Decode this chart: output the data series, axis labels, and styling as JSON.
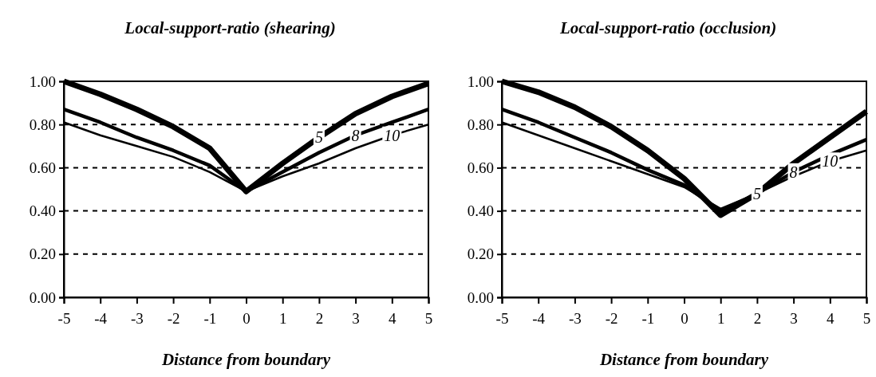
{
  "chart_data": [
    {
      "type": "line",
      "title": "Local-support-ratio (shearing)",
      "xlabel": "Distance from boundary",
      "x": [
        -5,
        -4,
        -3,
        -2,
        -1,
        0,
        1,
        2,
        3,
        4,
        5
      ],
      "xlim": [
        -5,
        5
      ],
      "xticks": [
        -5,
        -4,
        -3,
        -2,
        -1,
        0,
        1,
        2,
        3,
        4,
        5
      ],
      "ylim": [
        0,
        1
      ],
      "yticks": [
        {
          "value": 0,
          "label": "0.00"
        },
        {
          "value": 0.2,
          "label": "0.20"
        },
        {
          "value": 0.4,
          "label": "0.40"
        },
        {
          "value": 0.6,
          "label": "0.60"
        },
        {
          "value": 0.8,
          "label": "0.80"
        },
        {
          "value": 1,
          "label": "1.00"
        }
      ],
      "grid": "y",
      "marker": "none",
      "series": [
        {
          "name": "5",
          "color": "#000000",
          "values": [
            1.0,
            0.94,
            0.87,
            0.79,
            0.69,
            0.49,
            0.62,
            0.74,
            0.85,
            0.93,
            0.99
          ]
        },
        {
          "name": "8",
          "color": "#000000",
          "values": [
            0.87,
            0.81,
            0.74,
            0.68,
            0.61,
            0.49,
            0.58,
            0.67,
            0.75,
            0.81,
            0.87
          ]
        },
        {
          "name": "10",
          "color": "#000000",
          "values": [
            0.81,
            0.75,
            0.7,
            0.65,
            0.58,
            0.49,
            0.56,
            0.62,
            0.69,
            0.75,
            0.8
          ]
        }
      ]
    },
    {
      "type": "line",
      "title": "Local-support-ratio (occlusion)",
      "xlabel": "Distance from boundary",
      "x": [
        -5,
        -4,
        -3,
        -2,
        -1,
        0,
        1,
        2,
        3,
        4,
        5
      ],
      "xlim": [
        -5,
        5
      ],
      "xticks": [
        -5,
        -4,
        -3,
        -2,
        -1,
        0,
        1,
        2,
        3,
        4,
        5
      ],
      "ylim": [
        0,
        1
      ],
      "yticks": [
        {
          "value": 0,
          "label": "0.00"
        },
        {
          "value": 0.2,
          "label": "0.20"
        },
        {
          "value": 0.4,
          "label": "0.40"
        },
        {
          "value": 0.6,
          "label": "0.60"
        },
        {
          "value": 0.8,
          "label": "0.80"
        },
        {
          "value": 1,
          "label": "1.00"
        }
      ],
      "grid": "y",
      "marker": "none",
      "series": [
        {
          "name": "5",
          "color": "#000000",
          "values": [
            1.0,
            0.95,
            0.88,
            0.79,
            0.68,
            0.55,
            0.38,
            0.48,
            0.62,
            0.74,
            0.86
          ]
        },
        {
          "name": "8",
          "color": "#000000",
          "values": [
            0.87,
            0.81,
            0.74,
            0.67,
            0.59,
            0.52,
            0.4,
            0.48,
            0.58,
            0.66,
            0.73
          ]
        },
        {
          "name": "10",
          "color": "#000000",
          "values": [
            0.81,
            0.75,
            0.69,
            0.63,
            0.57,
            0.51,
            0.41,
            0.48,
            0.56,
            0.63,
            0.68
          ]
        }
      ]
    }
  ]
}
